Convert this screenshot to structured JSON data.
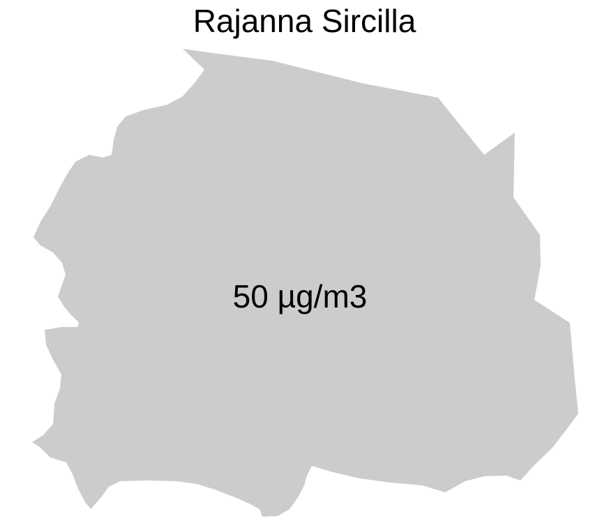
{
  "map": {
    "title": "Rajanna Sircilla",
    "region_value_label": "50 µg/m3",
    "region_fill": "#cccccc"
  }
}
